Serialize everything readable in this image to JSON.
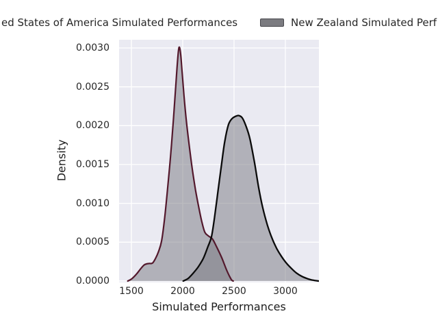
{
  "window": {
    "background": "#ffffff"
  },
  "legend": {
    "position": "top",
    "items": [
      {
        "label": "ed States of America Simulated Performances",
        "truncated_at": "left-edge",
        "swatch_visible": false
      },
      {
        "label": "New Zealand Simulated Perf",
        "truncated_at": "right-edge",
        "swatch_visible": true,
        "swatch_fill": "#7b7b80",
        "swatch_border": "#46464b"
      }
    ]
  },
  "chart_data": {
    "type": "area",
    "subtype": "kde-density",
    "title": "",
    "xlabel": "Simulated Performances",
    "ylabel": "Density",
    "grid": true,
    "legend_position": "top-center-clipped",
    "plot_background": "#eaeaf2",
    "grid_color": "#ffffff",
    "tick_label_color": "#262626",
    "xlim": [
      1380,
      3327
    ],
    "ylim": [
      -1.8e-05,
      0.003106
    ],
    "x_tick_values": [
      1500,
      2000,
      2500,
      3000
    ],
    "x_tick_labels": [
      "1500",
      "2000",
      "2500",
      "3000"
    ],
    "y_tick_values": [
      0.0,
      0.0005,
      0.001,
      0.0015,
      0.002,
      0.0025,
      0.003
    ],
    "y_tick_labels": [
      "0.0000",
      "0.0005",
      "0.0010",
      "0.0015",
      "0.0020",
      "0.0025",
      "0.0030"
    ],
    "series": [
      {
        "name": "ed States of America Simulated Performances",
        "line_color": "#53182c",
        "line_width": 2.2,
        "fill_color": "#78787f",
        "fill_alpha": 0.5,
        "peak": {
          "x": 1968,
          "y": 0.00301
        },
        "points": [
          [
            1465,
            0.0
          ],
          [
            1505,
            3e-05
          ],
          [
            1550,
            9e-05
          ],
          [
            1592,
            0.00016
          ],
          [
            1628,
            0.00021
          ],
          [
            1668,
            0.000225
          ],
          [
            1705,
            0.00023
          ],
          [
            1735,
            0.00029
          ],
          [
            1765,
            0.00038
          ],
          [
            1795,
            0.00052
          ],
          [
            1825,
            0.00082
          ],
          [
            1855,
            0.00122
          ],
          [
            1885,
            0.00166
          ],
          [
            1910,
            0.00209
          ],
          [
            1930,
            0.00247
          ],
          [
            1945,
            0.00275
          ],
          [
            1958,
            0.00296
          ],
          [
            1968,
            0.00301
          ],
          [
            1980,
            0.00292
          ],
          [
            1995,
            0.00268
          ],
          [
            2012,
            0.00239
          ],
          [
            2035,
            0.00207
          ],
          [
            2060,
            0.00178
          ],
          [
            2090,
            0.00147
          ],
          [
            2125,
            0.00117
          ],
          [
            2155,
            0.00096
          ],
          [
            2185,
            0.00077
          ],
          [
            2215,
            0.00063
          ],
          [
            2250,
            0.00058
          ],
          [
            2290,
            0.00054
          ],
          [
            2330,
            0.00044
          ],
          [
            2380,
            0.0003
          ],
          [
            2425,
            0.00015
          ],
          [
            2460,
            5e-05
          ],
          [
            2478,
            1e-05
          ],
          [
            2492,
            0.0
          ]
        ]
      },
      {
        "name": "New Zealand Simulated Perf",
        "line_color": "#0b0b0b",
        "line_width": 2.3,
        "fill_color": "#78787f",
        "fill_alpha": 0.5,
        "peak": {
          "x": 2547,
          "y": 0.00213
        },
        "points": [
          [
            2005,
            0.0
          ],
          [
            2050,
            3e-05
          ],
          [
            2095,
            9e-05
          ],
          [
            2150,
            0.00018
          ],
          [
            2200,
            0.00029
          ],
          [
            2245,
            0.00044
          ],
          [
            2280,
            0.00057
          ],
          [
            2310,
            0.00082
          ],
          [
            2345,
            0.00117
          ],
          [
            2380,
            0.00152
          ],
          [
            2410,
            0.0018
          ],
          [
            2445,
            0.00201
          ],
          [
            2480,
            0.00209
          ],
          [
            2515,
            0.00212
          ],
          [
            2547,
            0.00213
          ],
          [
            2580,
            0.0021
          ],
          [
            2615,
            0.002
          ],
          [
            2655,
            0.00183
          ],
          [
            2700,
            0.00152
          ],
          [
            2740,
            0.0012
          ],
          [
            2780,
            0.00094
          ],
          [
            2825,
            0.00072
          ],
          [
            2870,
            0.00055
          ],
          [
            2915,
            0.00042
          ],
          [
            2960,
            0.00032
          ],
          [
            3010,
            0.00023
          ],
          [
            3060,
            0.00016
          ],
          [
            3110,
            0.0001
          ],
          [
            3160,
            6e-05
          ],
          [
            3215,
            3e-05
          ],
          [
            3270,
            1e-05
          ],
          [
            3326,
            0.0
          ]
        ]
      }
    ]
  }
}
